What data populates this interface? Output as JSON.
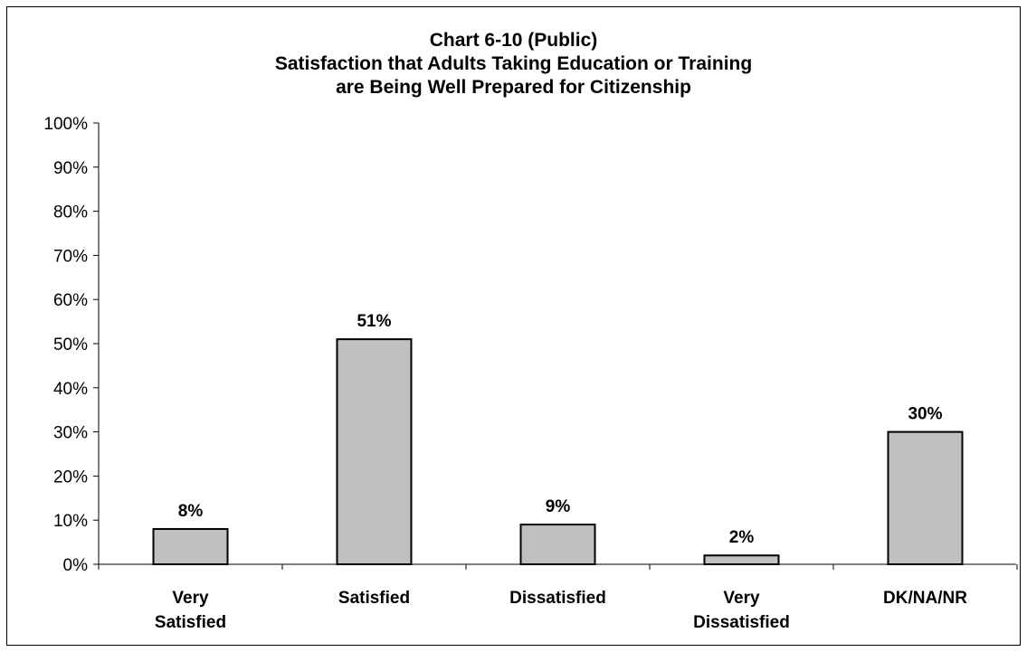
{
  "chart_data": {
    "type": "bar",
    "title_lines": [
      "Chart 6-10 (Public)",
      "Satisfaction that Adults Taking Education or Training",
      "are Being Well Prepared for Citizenship"
    ],
    "categories": [
      [
        "Very",
        "Satisfied"
      ],
      [
        "Satisfied"
      ],
      [
        "Dissatisfied"
      ],
      [
        "Very",
        "Dissatisfied"
      ],
      [
        "DK/NA/NR"
      ]
    ],
    "values": [
      8,
      51,
      9,
      2,
      30
    ],
    "data_labels": [
      "8%",
      "51%",
      "9%",
      "2%",
      "30%"
    ],
    "yticks": [
      0,
      10,
      20,
      30,
      40,
      50,
      60,
      70,
      80,
      90,
      100
    ],
    "ytick_labels": [
      "0%",
      "10%",
      "20%",
      "30%",
      "40%",
      "50%",
      "60%",
      "70%",
      "80%",
      "90%",
      "100%"
    ],
    "ylim": [
      0,
      100
    ],
    "xlabel": "",
    "ylabel": "",
    "grid": false,
    "legend": "none",
    "bar_color": "#c0c0c0",
    "bar_edge_color": "#000000"
  }
}
